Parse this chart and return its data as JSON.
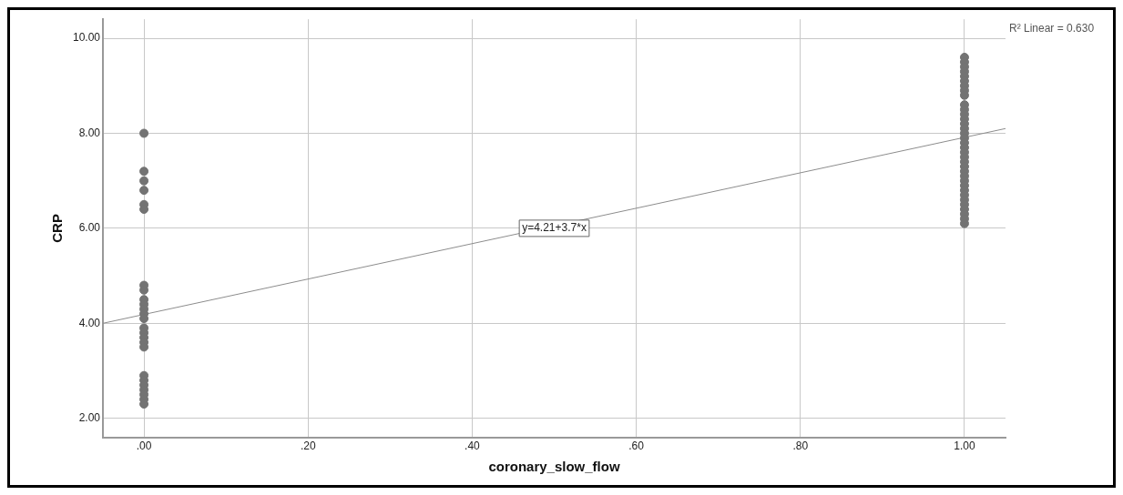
{
  "chart_data": {
    "type": "scatter",
    "xlabel": "coronary_slow_flow",
    "ylabel": "CRP",
    "xlim": [
      -0.05,
      1.05
    ],
    "ylim": [
      1.6,
      10.4
    ],
    "xticks": [
      {
        "value": 0,
        "label": ".00"
      },
      {
        "value": 0.2,
        "label": ".20"
      },
      {
        "value": 0.4,
        "label": ".40"
      },
      {
        "value": 0.6,
        "label": ".60"
      },
      {
        "value": 0.8,
        "label": ".80"
      },
      {
        "value": 1,
        "label": "1.00"
      }
    ],
    "yticks": [
      {
        "value": 2,
        "label": "2.00"
      },
      {
        "value": 4,
        "label": "4.00"
      },
      {
        "value": 6,
        "label": "6.00"
      },
      {
        "value": 8,
        "label": "8.00"
      },
      {
        "value": 10,
        "label": "10.00"
      }
    ],
    "grid": true,
    "legend": false,
    "marker": "circle",
    "series": [
      {
        "color": "#737373",
        "x": [
          0,
          0,
          0,
          0,
          0,
          0,
          0,
          0,
          0,
          0,
          0,
          0,
          0,
          0,
          0,
          0,
          0,
          0,
          0,
          0,
          0,
          0,
          0,
          0,
          0
        ],
        "values": [
          8.0,
          7.2,
          7.0,
          6.8,
          6.5,
          6.4,
          4.8,
          4.7,
          4.5,
          4.4,
          4.3,
          4.2,
          4.1,
          3.9,
          3.8,
          3.7,
          3.6,
          3.5,
          2.9,
          2.8,
          2.7,
          2.6,
          2.5,
          2.4,
          2.3
        ]
      },
      {
        "color": "#737373",
        "x": [
          1,
          1,
          1,
          1,
          1,
          1,
          1,
          1,
          1,
          1,
          1,
          1,
          1,
          1,
          1,
          1,
          1,
          1,
          1,
          1,
          1,
          1,
          1,
          1,
          1,
          1,
          1,
          1,
          1,
          1,
          1,
          1,
          1,
          1,
          1
        ],
        "values": [
          9.6,
          9.5,
          9.4,
          9.3,
          9.2,
          9.1,
          9.0,
          8.9,
          8.8,
          8.6,
          8.5,
          8.4,
          8.3,
          8.2,
          8.1,
          8.0,
          7.9,
          7.8,
          7.7,
          7.6,
          7.5,
          7.4,
          7.3,
          7.2,
          7.1,
          7.0,
          6.9,
          6.8,
          6.7,
          6.6,
          6.5,
          6.4,
          6.3,
          6.2,
          6.1
        ]
      },
      {
        "type": "line",
        "color": "#8c8c8c",
        "marker": "none",
        "x": [
          -0.05,
          1.05
        ],
        "values": [
          4.0,
          8.1
        ]
      }
    ],
    "annotations": [
      {
        "text": "y=4.21+3.7*x",
        "x": 0.5,
        "y": 6.0
      },
      "R² Linear = 0.630"
    ]
  }
}
